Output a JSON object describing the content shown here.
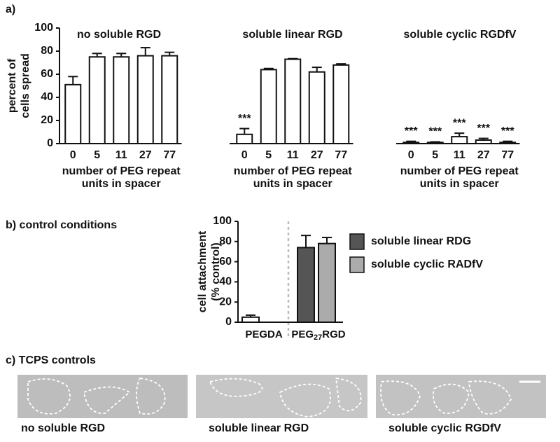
{
  "panel_labels": {
    "a": "a)",
    "b": "b) control conditions",
    "c": "c) TCPS controls"
  },
  "chart_data": [
    {
      "type": "bar",
      "title": "no soluble RGD",
      "categories": [
        "0",
        "5",
        "11",
        "27",
        "77"
      ],
      "values": [
        51,
        75,
        75,
        76,
        76
      ],
      "errors": [
        7,
        3,
        3,
        7,
        3
      ],
      "color": "#ffffff",
      "ylim": [
        0,
        100
      ],
      "yticks": [
        0,
        20,
        40,
        60,
        80,
        100
      ],
      "ylabel": [
        "percent of",
        "cells spread"
      ],
      "xlabel": [
        "number of PEG repeat",
        "units in spacer"
      ],
      "grid": false
    },
    {
      "type": "bar",
      "title": "soluble linear RGD",
      "categories": [
        "0",
        "5",
        "11",
        "27",
        "77"
      ],
      "values": [
        8,
        64,
        73,
        62,
        68
      ],
      "errors": [
        5,
        1,
        0.5,
        4,
        1
      ],
      "color": "#ffffff",
      "value_annotations": [
        "***",
        null,
        null,
        null,
        null
      ],
      "ylim": [
        0,
        100
      ],
      "xlabel": [
        "number of PEG repeat",
        "units in spacer"
      ],
      "grid": false
    },
    {
      "type": "bar",
      "title": "soluble cyclic RGDfV",
      "categories": [
        "0",
        "5",
        "11",
        "27",
        "77"
      ],
      "values": [
        1,
        1,
        6,
        3,
        1
      ],
      "errors": [
        1,
        0.5,
        3,
        1.5,
        1
      ],
      "color": "#ffffff",
      "value_annotations": [
        "***",
        "***",
        "***",
        "***",
        "***"
      ],
      "ylim": [
        0,
        100
      ],
      "xlabel": [
        "number of PEG repeat",
        "units in spacer"
      ],
      "grid": false
    },
    {
      "type": "grouped_bar",
      "categories": [
        [
          "PEGDA"
        ],
        [
          "PEG",
          "27",
          "RGD"
        ]
      ],
      "values": [
        5,
        null
      ],
      "errors": [
        2,
        null
      ],
      "color": "#ffffff",
      "series": [
        {
          "name": "soluble linear RDG",
          "color": "#555555",
          "values": [
            null,
            74
          ],
          "errors": [
            null,
            12
          ]
        },
        {
          "name": "soluble cyclic RADfV",
          "color": "#ababab",
          "values": [
            null,
            78
          ],
          "errors": [
            null,
            6
          ]
        }
      ],
      "ylim": [
        0,
        100
      ],
      "yticks": [
        0,
        20,
        40,
        60,
        80,
        100
      ],
      "ylabel": [
        "cell attachment",
        "(% control)"
      ],
      "legend": "right",
      "grid": false
    }
  ],
  "images": {
    "captions": [
      "no soluble RGD",
      "soluble linear RGD",
      "soluble cyclic RGDfV"
    ]
  }
}
